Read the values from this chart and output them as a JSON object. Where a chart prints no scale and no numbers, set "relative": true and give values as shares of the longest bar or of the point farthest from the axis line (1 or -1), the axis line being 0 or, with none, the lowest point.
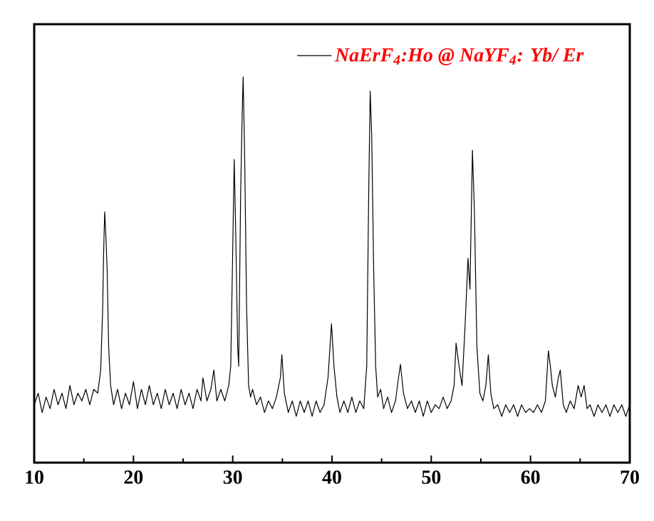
{
  "chart_data": {
    "type": "line",
    "relative": true,
    "legend": "top right",
    "xlim": [
      10,
      70
    ],
    "xticks": [
      10,
      20,
      30,
      40,
      50,
      60,
      70
    ],
    "series": [
      {
        "name": "NaErF$_{4}$:Ho @ NaYF$_{4}$: Yb/ Er",
        "color": "#000000",
        "x": [
          10.0,
          10.4,
          10.8,
          11.2,
          11.6,
          12.0,
          12.4,
          12.8,
          13.2,
          13.6,
          14.0,
          14.4,
          14.8,
          15.2,
          15.6,
          16.0,
          16.4,
          16.7,
          16.9,
          17.0,
          17.1,
          17.2,
          17.35,
          17.5,
          17.7,
          18.0,
          18.4,
          18.8,
          19.2,
          19.6,
          20.0,
          20.4,
          20.8,
          21.2,
          21.6,
          22.0,
          22.4,
          22.8,
          23.2,
          23.6,
          24.0,
          24.4,
          24.8,
          25.2,
          25.6,
          26.0,
          26.4,
          26.8,
          27.0,
          27.4,
          27.8,
          28.1,
          28.4,
          28.8,
          29.2,
          29.6,
          29.8,
          30.0,
          30.15,
          30.3,
          30.5,
          30.6,
          30.8,
          30.95,
          31.05,
          31.2,
          31.4,
          31.6,
          31.8,
          32.0,
          32.4,
          32.8,
          33.2,
          33.6,
          34.0,
          34.4,
          34.8,
          34.95,
          35.2,
          35.6,
          36.0,
          36.4,
          36.8,
          37.2,
          37.6,
          38.0,
          38.4,
          38.8,
          39.2,
          39.6,
          39.95,
          40.2,
          40.5,
          40.8,
          41.2,
          41.6,
          42.0,
          42.4,
          42.8,
          43.2,
          43.5,
          43.7,
          43.85,
          44.0,
          44.2,
          44.4,
          44.6,
          44.9,
          45.2,
          45.6,
          46.0,
          46.4,
          46.7,
          46.9,
          47.2,
          47.6,
          48.0,
          48.4,
          48.8,
          49.2,
          49.6,
          50.0,
          50.4,
          50.8,
          51.2,
          51.6,
          52.0,
          52.3,
          52.5,
          52.8,
          53.1,
          53.4,
          53.7,
          53.9,
          54.15,
          54.35,
          54.6,
          54.9,
          55.2,
          55.5,
          55.75,
          56.0,
          56.3,
          56.7,
          57.1,
          57.5,
          57.9,
          58.3,
          58.7,
          59.1,
          59.5,
          59.9,
          60.3,
          60.7,
          61.1,
          61.5,
          61.8,
          62.0,
          62.2,
          62.5,
          62.8,
          63.0,
          63.3,
          63.6,
          64.0,
          64.4,
          64.8,
          65.1,
          65.4,
          65.7,
          66.0,
          66.4,
          66.8,
          67.2,
          67.6,
          68.0,
          68.4,
          68.8,
          69.2,
          69.6,
          70.0
        ],
        "values": [
          0.15,
          0.18,
          0.13,
          0.17,
          0.14,
          0.19,
          0.15,
          0.18,
          0.14,
          0.2,
          0.15,
          0.18,
          0.16,
          0.19,
          0.15,
          0.19,
          0.18,
          0.24,
          0.4,
          0.55,
          0.65,
          0.6,
          0.5,
          0.3,
          0.2,
          0.15,
          0.19,
          0.14,
          0.18,
          0.15,
          0.21,
          0.14,
          0.19,
          0.15,
          0.2,
          0.15,
          0.18,
          0.14,
          0.19,
          0.15,
          0.18,
          0.14,
          0.19,
          0.15,
          0.18,
          0.14,
          0.19,
          0.16,
          0.22,
          0.16,
          0.19,
          0.24,
          0.16,
          0.19,
          0.16,
          0.2,
          0.25,
          0.55,
          0.786,
          0.6,
          0.3,
          0.25,
          0.7,
          0.9,
          1.0,
          0.8,
          0.4,
          0.2,
          0.17,
          0.19,
          0.15,
          0.17,
          0.13,
          0.16,
          0.14,
          0.17,
          0.22,
          0.28,
          0.18,
          0.13,
          0.16,
          0.12,
          0.16,
          0.13,
          0.16,
          0.12,
          0.16,
          0.13,
          0.15,
          0.22,
          0.36,
          0.25,
          0.17,
          0.13,
          0.16,
          0.13,
          0.17,
          0.13,
          0.16,
          0.14,
          0.25,
          0.7,
          0.963,
          0.85,
          0.5,
          0.25,
          0.17,
          0.19,
          0.14,
          0.17,
          0.13,
          0.16,
          0.22,
          0.255,
          0.18,
          0.14,
          0.16,
          0.13,
          0.16,
          0.12,
          0.16,
          0.13,
          0.15,
          0.14,
          0.17,
          0.14,
          0.16,
          0.2,
          0.31,
          0.25,
          0.2,
          0.35,
          0.53,
          0.45,
          0.81,
          0.65,
          0.3,
          0.18,
          0.16,
          0.2,
          0.28,
          0.18,
          0.14,
          0.15,
          0.12,
          0.15,
          0.13,
          0.15,
          0.12,
          0.15,
          0.13,
          0.14,
          0.13,
          0.15,
          0.13,
          0.16,
          0.29,
          0.25,
          0.2,
          0.17,
          0.22,
          0.24,
          0.15,
          0.13,
          0.16,
          0.14,
          0.2,
          0.17,
          0.2,
          0.14,
          0.15,
          0.12,
          0.15,
          0.13,
          0.15,
          0.12,
          0.15,
          0.13,
          0.15,
          0.12,
          0.15
        ]
      }
    ]
  }
}
